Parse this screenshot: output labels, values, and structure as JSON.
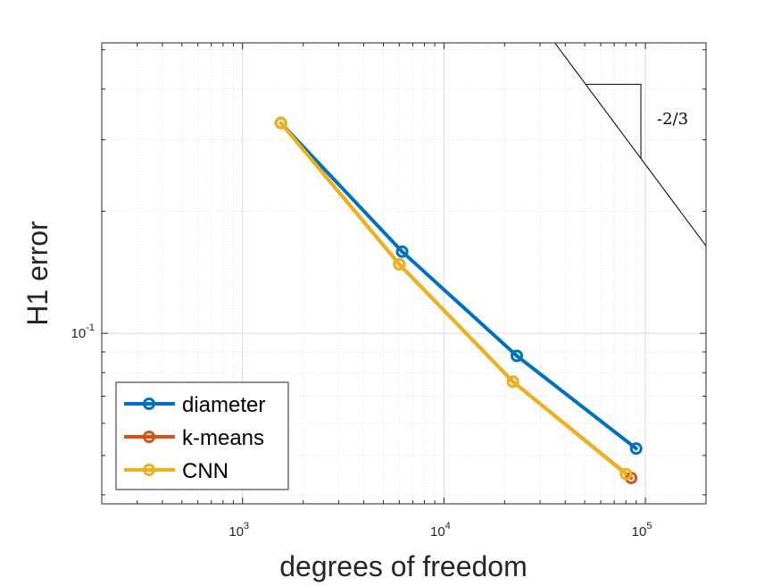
{
  "chart_data": {
    "type": "line",
    "xscale": "log",
    "yscale": "log",
    "xlabel": "degrees of freedom",
    "ylabel": "H1 error",
    "xlim": [
      200,
      200000
    ],
    "ylim": [
      0.038,
      0.52
    ],
    "x_ticks": [
      {
        "value": 1000,
        "base": "10",
        "exp": "3"
      },
      {
        "value": 10000,
        "base": "10",
        "exp": "4"
      },
      {
        "value": 100000,
        "base": "10",
        "exp": "5"
      }
    ],
    "y_ticks": [
      {
        "value": 0.1,
        "base": "10",
        "exp": "-1"
      }
    ],
    "grid": true,
    "series": [
      {
        "name": "diameter",
        "color": "#0072BD",
        "x": [
          1550,
          6200,
          23000,
          90000
        ],
        "y": [
          0.33,
          0.159,
          0.088,
          0.052
        ]
      },
      {
        "name": "k-means",
        "color": "#D95319",
        "x": [
          1550,
          6000,
          22000,
          85000
        ],
        "y": [
          0.33,
          0.148,
          0.076,
          0.044
        ]
      },
      {
        "name": "CNN",
        "color": "#EDB120",
        "x": [
          1550,
          6000,
          22000,
          80000
        ],
        "y": [
          0.33,
          0.148,
          0.076,
          0.045
        ]
      }
    ],
    "legend": {
      "position": "bottom-left",
      "entries": [
        "diameter",
        "k-means",
        "CNN"
      ]
    },
    "slope_annotation": {
      "label": "-2/3",
      "slope": -0.6667
    }
  }
}
